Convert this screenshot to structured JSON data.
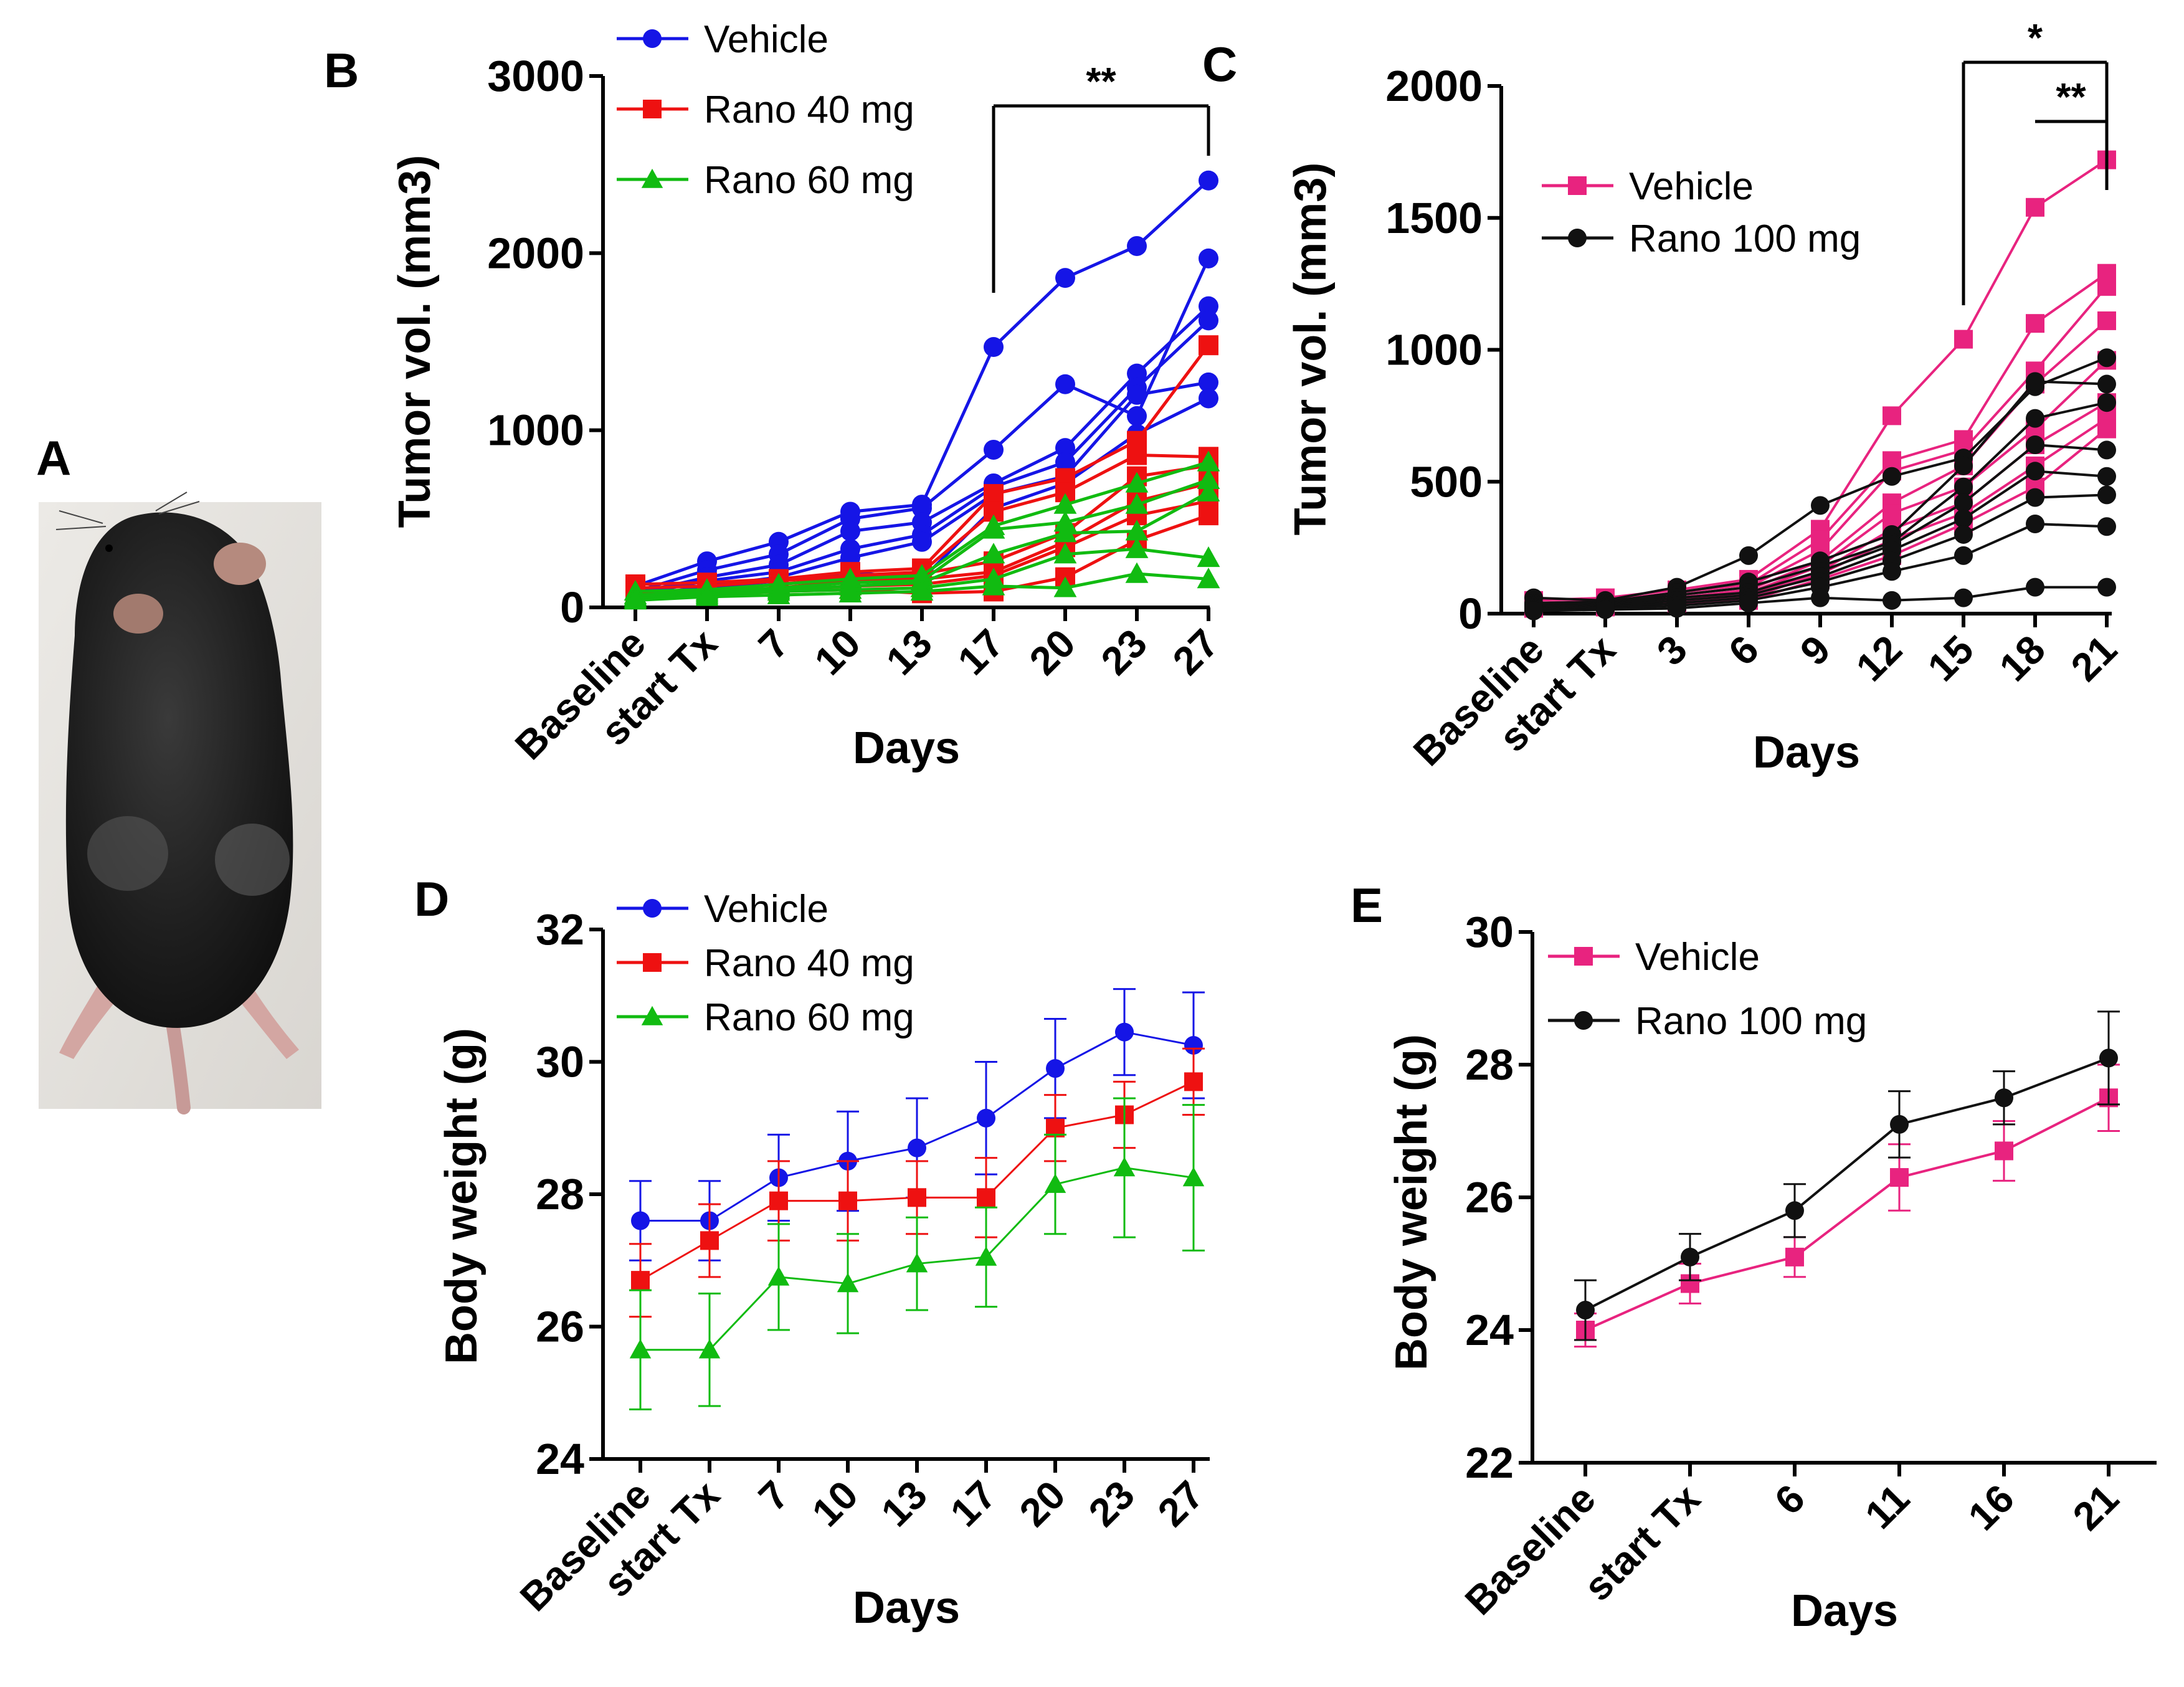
{
  "figure": {
    "panel_a_label": "A",
    "photo_description_alt": "mouse"
  },
  "colors": {
    "blue": "#1515e6",
    "red": "#ee1111",
    "green": "#11bb11",
    "pink": "#e8237f",
    "black": "#111111"
  },
  "chart_data": [
    {
      "id": "B",
      "panel_label": "B",
      "type": "line",
      "title": "",
      "xlabel": "Days",
      "ylabel": "Tumor vol. (mm3)",
      "categories": [
        "Baseline",
        "start Tx",
        "7",
        "10",
        "13",
        "17",
        "20",
        "23",
        "27"
      ],
      "ylim": [
        0,
        3000
      ],
      "yticks": [
        0,
        1000,
        2000,
        3000
      ],
      "legend": [
        {
          "name": "Vehicle",
          "color": "blue",
          "marker": "circle"
        },
        {
          "name": "Rano 40 mg",
          "color": "red",
          "marker": "square"
        },
        {
          "name": "Rano 60 mg",
          "color": "green",
          "marker": "triangle"
        }
      ],
      "significance": [
        {
          "label": "**",
          "from": "17",
          "to": "27"
        }
      ],
      "series": [
        {
          "group": "Vehicle",
          "values": [
            120,
            260,
            370,
            540,
            580,
            1470,
            1860,
            2040,
            2410
          ]
        },
        {
          "group": "Vehicle",
          "values": [
            90,
            210,
            300,
            500,
            560,
            890,
            1260,
            1080,
            1970
          ]
        },
        {
          "group": "Vehicle",
          "values": [
            80,
            170,
            240,
            430,
            480,
            700,
            900,
            1320,
            1700
          ]
        },
        {
          "group": "Vehicle",
          "values": [
            70,
            150,
            200,
            330,
            410,
            680,
            820,
            1240,
            1620
          ]
        },
        {
          "group": "Vehicle",
          "values": [
            60,
            120,
            170,
            280,
            370,
            640,
            740,
            1200,
            1270
          ]
        },
        {
          "group": "Vehicle",
          "values": [
            50,
            110,
            150,
            200,
            160,
            560,
            700,
            980,
            1180
          ]
        },
        {
          "group": "Rano 40 mg",
          "values": [
            130,
            140,
            160,
            200,
            220,
            640,
            730,
            940,
            1480
          ]
        },
        {
          "group": "Rano 40 mg",
          "values": [
            110,
            120,
            150,
            180,
            200,
            540,
            650,
            860,
            850
          ]
        },
        {
          "group": "Rano 40 mg",
          "values": [
            90,
            100,
            130,
            170,
            190,
            260,
            420,
            740,
            800
          ]
        },
        {
          "group": "Rano 40 mg",
          "values": [
            80,
            90,
            110,
            150,
            160,
            200,
            370,
            600,
            700
          ]
        },
        {
          "group": "Rano 40 mg",
          "values": [
            70,
            80,
            100,
            120,
            130,
            180,
            340,
            520,
            600
          ]
        },
        {
          "group": "Rano 40 mg",
          "values": [
            60,
            70,
            90,
            100,
            80,
            90,
            170,
            380,
            520
          ]
        },
        {
          "group": "Rano 60 mg",
          "values": [
            90,
            100,
            130,
            160,
            180,
            460,
            580,
            700,
            820
          ]
        },
        {
          "group": "Rano 60 mg",
          "values": [
            70,
            90,
            110,
            140,
            150,
            440,
            480,
            580,
            720
          ]
        },
        {
          "group": "Rano 60 mg",
          "values": [
            60,
            80,
            100,
            120,
            140,
            300,
            420,
            430,
            650
          ]
        },
        {
          "group": "Rano 60 mg",
          "values": [
            50,
            70,
            90,
            100,
            110,
            160,
            300,
            330,
            280
          ]
        },
        {
          "group": "Rano 60 mg",
          "values": [
            40,
            60,
            70,
            80,
            90,
            120,
            110,
            190,
            160
          ]
        }
      ]
    },
    {
      "id": "C",
      "panel_label": "C",
      "type": "line",
      "title": "",
      "xlabel": "Days",
      "ylabel": "Tumor vol. (mm3)",
      "categories": [
        "Baseline",
        "start Tx",
        "3",
        "6",
        "9",
        "12",
        "15",
        "18",
        "21"
      ],
      "ylim": [
        0,
        2000
      ],
      "yticks": [
        0,
        500,
        1000,
        1500,
        2000
      ],
      "legend": [
        {
          "name": "Vehicle",
          "color": "pink",
          "marker": "square"
        },
        {
          "name": "Rano 100 mg",
          "color": "black",
          "marker": "circle"
        }
      ],
      "significance": [
        {
          "label": "*",
          "from": "15",
          "to": "21"
        },
        {
          "label": "**",
          "from": "18",
          "to": "21"
        }
      ],
      "series": [
        {
          "group": "Vehicle",
          "values": [
            50,
            60,
            90,
            130,
            320,
            750,
            1040,
            1540,
            1720
          ]
        },
        {
          "group": "Vehicle",
          "values": [
            40,
            50,
            80,
            110,
            280,
            580,
            660,
            1100,
            1290
          ]
        },
        {
          "group": "Vehicle",
          "values": [
            40,
            45,
            70,
            100,
            240,
            540,
            620,
            920,
            1240
          ]
        },
        {
          "group": "Vehicle",
          "values": [
            35,
            40,
            60,
            90,
            200,
            420,
            560,
            870,
            1110
          ]
        },
        {
          "group": "Vehicle",
          "values": [
            30,
            40,
            55,
            80,
            180,
            380,
            480,
            700,
            960
          ]
        },
        {
          "group": "Vehicle",
          "values": [
            30,
            35,
            50,
            70,
            160,
            320,
            420,
            640,
            800
          ]
        },
        {
          "group": "Vehicle",
          "values": [
            25,
            30,
            45,
            60,
            150,
            280,
            380,
            560,
            740
          ]
        },
        {
          "group": "Vehicle",
          "values": [
            20,
            25,
            40,
            50,
            130,
            220,
            340,
            480,
            700
          ]
        },
        {
          "group": "Rano 100 mg",
          "values": [
            60,
            50,
            100,
            220,
            410,
            520,
            590,
            860,
            970
          ]
        },
        {
          "group": "Rano 100 mg",
          "values": [
            40,
            45,
            80,
            120,
            200,
            300,
            560,
            880,
            870
          ]
        },
        {
          "group": "Rano 100 mg",
          "values": [
            35,
            40,
            70,
            100,
            180,
            270,
            480,
            740,
            800
          ]
        },
        {
          "group": "Rano 100 mg",
          "values": [
            30,
            35,
            60,
            80,
            160,
            260,
            420,
            640,
            620
          ]
        },
        {
          "group": "Rano 100 mg",
          "values": [
            25,
            30,
            50,
            70,
            140,
            240,
            360,
            540,
            520
          ]
        },
        {
          "group": "Rano 100 mg",
          "values": [
            20,
            25,
            40,
            60,
            120,
            200,
            300,
            440,
            450
          ]
        },
        {
          "group": "Rano 100 mg",
          "values": [
            15,
            20,
            30,
            50,
            100,
            160,
            220,
            340,
            330
          ]
        },
        {
          "group": "Rano 100 mg",
          "values": [
            10,
            15,
            20,
            40,
            60,
            50,
            60,
            100,
            100
          ]
        }
      ]
    },
    {
      "id": "D",
      "panel_label": "D",
      "type": "line",
      "title": "",
      "xlabel": "Days",
      "ylabel": "Body weight (g)",
      "categories": [
        "Baseline",
        "start Tx",
        "7",
        "10",
        "13",
        "17",
        "20",
        "23",
        "27"
      ],
      "ylim": [
        24,
        32
      ],
      "yticks": [
        24,
        26,
        28,
        30,
        32
      ],
      "legend": [
        {
          "name": "Vehicle",
          "color": "blue",
          "marker": "circle"
        },
        {
          "name": "Rano 40 mg",
          "color": "red",
          "marker": "square"
        },
        {
          "name": "Rano 60 mg",
          "color": "green",
          "marker": "triangle"
        }
      ],
      "series": [
        {
          "name": "Vehicle",
          "values": [
            27.6,
            27.6,
            28.25,
            28.5,
            28.7,
            29.15,
            29.9,
            30.45,
            30.25
          ],
          "errors": [
            0.6,
            0.6,
            0.65,
            0.75,
            0.75,
            0.85,
            0.75,
            0.65,
            0.8
          ]
        },
        {
          "name": "Rano 40 mg",
          "values": [
            26.7,
            27.3,
            27.9,
            27.9,
            27.95,
            27.95,
            29.0,
            29.2,
            29.7
          ],
          "errors": [
            0.55,
            0.55,
            0.6,
            0.6,
            0.55,
            0.6,
            0.5,
            0.5,
            0.5
          ]
        },
        {
          "name": "Rano 60 mg",
          "values": [
            25.65,
            25.65,
            26.75,
            26.65,
            26.95,
            27.05,
            28.15,
            28.4,
            28.25
          ],
          "errors": [
            0.9,
            0.85,
            0.8,
            0.75,
            0.7,
            0.75,
            0.75,
            1.05,
            1.1
          ]
        }
      ]
    },
    {
      "id": "E",
      "panel_label": "E",
      "type": "line",
      "title": "",
      "xlabel": "Days",
      "ylabel": "Body weight (g)",
      "categories": [
        "Baseline",
        "start Tx",
        "6",
        "11",
        "16",
        "21"
      ],
      "ylim": [
        22,
        30
      ],
      "yticks": [
        22,
        24,
        26,
        28,
        30
      ],
      "legend": [
        {
          "name": "Vehicle",
          "color": "pink",
          "marker": "square"
        },
        {
          "name": "Rano 100 mg",
          "color": "black",
          "marker": "circle"
        }
      ],
      "series": [
        {
          "name": "Vehicle",
          "values": [
            24.0,
            24.7,
            25.1,
            26.3,
            26.7,
            27.5
          ],
          "errors": [
            0.25,
            0.3,
            0.3,
            0.5,
            0.45,
            0.5
          ]
        },
        {
          "name": "Rano 100 mg",
          "values": [
            24.3,
            25.1,
            25.8,
            27.1,
            27.5,
            28.1
          ],
          "errors": [
            0.45,
            0.35,
            0.4,
            0.5,
            0.4,
            0.7
          ]
        }
      ]
    }
  ]
}
